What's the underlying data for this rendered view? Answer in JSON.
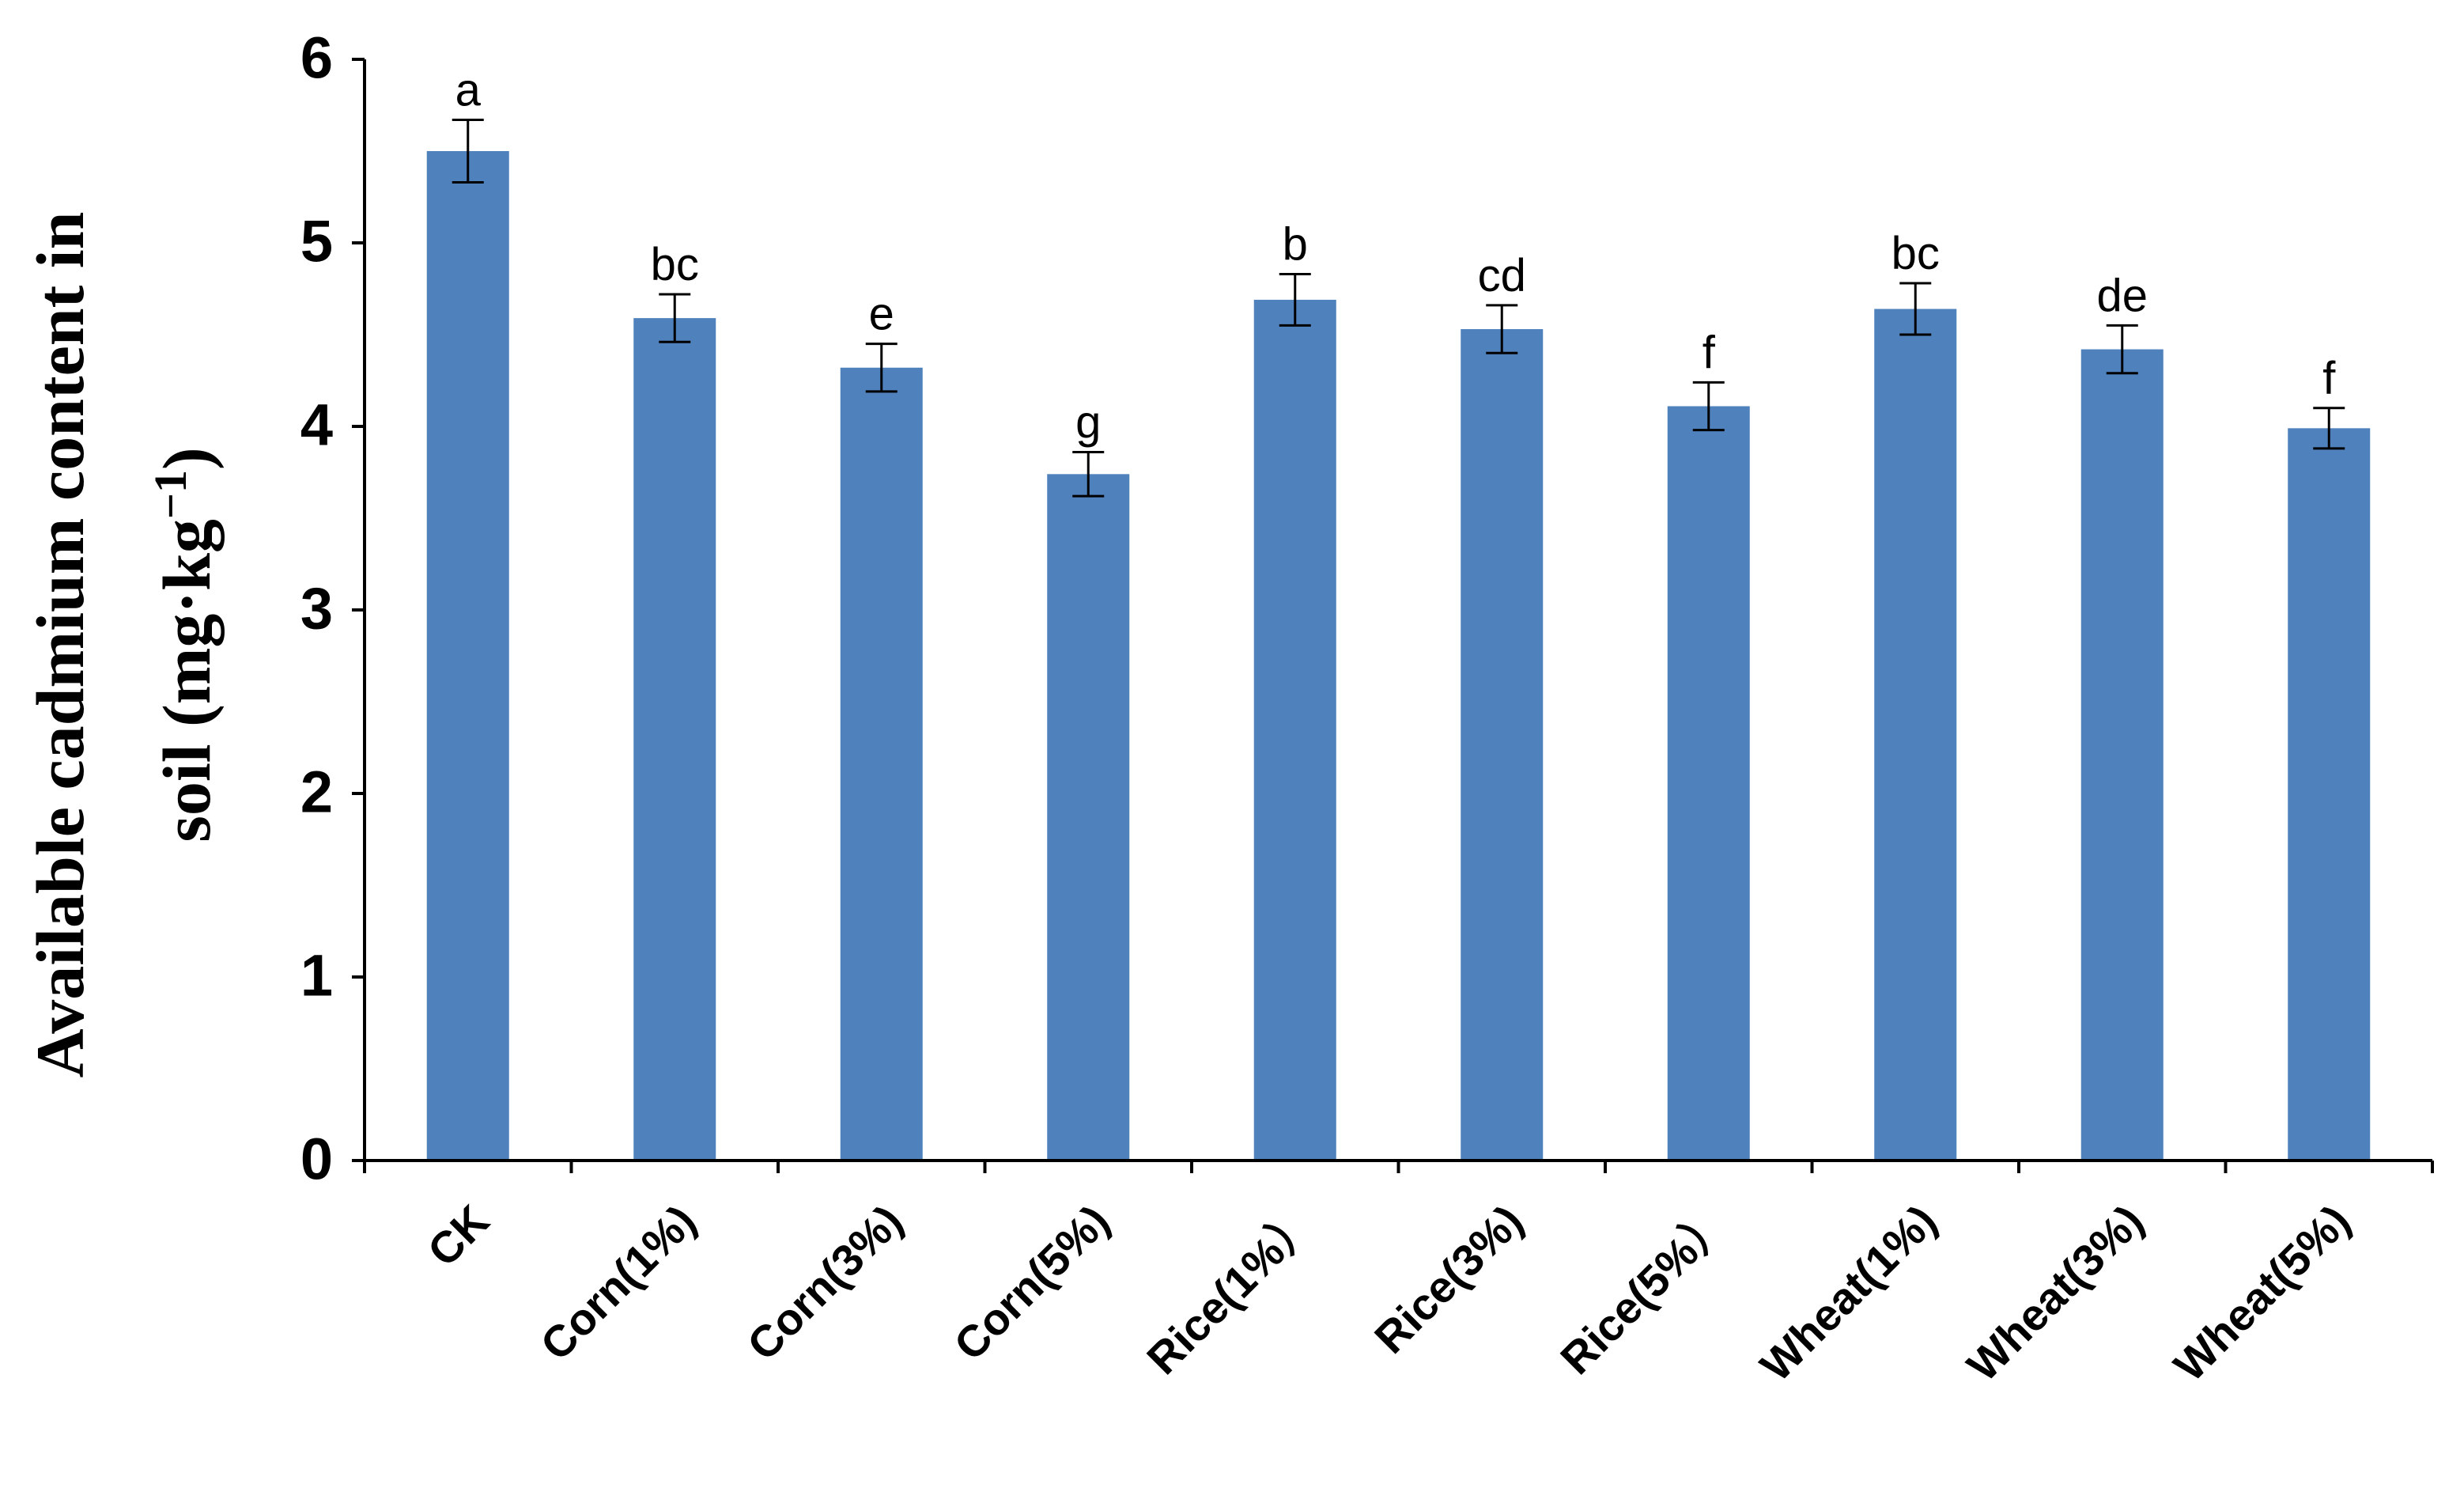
{
  "chart_data": {
    "type": "bar",
    "y_label": {
      "line1": "Available cadmium content in",
      "line2": "soil (mg·kg",
      "superscript": "−1",
      "close": ")"
    },
    "categories": [
      "CK",
      "Corn(1%)",
      "Corn(3%)",
      "Corn(5%)",
      "Rice(1%）",
      "Rice(3%)",
      "Rice(5%）",
      "Wheat(1%)",
      "Wheat(3%)",
      "Wheat(5%)"
    ],
    "values": [
      5.5,
      4.59,
      4.32,
      3.74,
      4.69,
      4.53,
      4.11,
      4.64,
      4.42,
      3.99
    ],
    "errors": [
      0.17,
      0.13,
      0.13,
      0.12,
      0.14,
      0.13,
      0.13,
      0.14,
      0.13,
      0.11
    ],
    "annotations": [
      "a",
      "bc",
      "e",
      "g",
      "b",
      "cd",
      "f",
      "bc",
      "de",
      "f"
    ],
    "color": "#4f81bd",
    "ylim": [
      0,
      6
    ],
    "yticks": [
      0,
      1,
      2,
      3,
      4,
      5,
      6
    ],
    "grid": false
  }
}
